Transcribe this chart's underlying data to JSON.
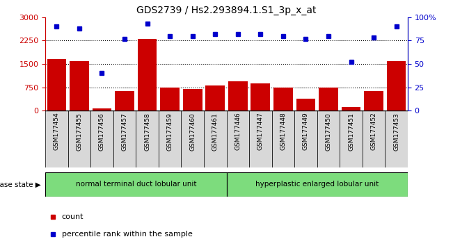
{
  "title": "GDS2739 / Hs2.293894.1.S1_3p_x_at",
  "samples": [
    "GSM177454",
    "GSM177455",
    "GSM177456",
    "GSM177457",
    "GSM177458",
    "GSM177459",
    "GSM177460",
    "GSM177461",
    "GSM177446",
    "GSM177447",
    "GSM177448",
    "GSM177449",
    "GSM177450",
    "GSM177451",
    "GSM177452",
    "GSM177453"
  ],
  "counts": [
    1650,
    1580,
    75,
    620,
    2300,
    750,
    700,
    800,
    950,
    870,
    750,
    380,
    750,
    120,
    640,
    1580
  ],
  "percentiles": [
    90,
    88,
    40,
    77,
    93,
    80,
    80,
    82,
    82,
    82,
    80,
    77,
    80,
    52,
    78,
    90
  ],
  "group1_label": "normal terminal duct lobular unit",
  "group2_label": "hyperplastic enlarged lobular unit",
  "group1_count": 8,
  "group2_count": 8,
  "bar_color": "#cc0000",
  "dot_color": "#0000cc",
  "left_ylim": [
    0,
    3000
  ],
  "right_ylim": [
    0,
    100
  ],
  "left_yticks": [
    0,
    750,
    1500,
    2250,
    3000
  ],
  "right_yticks": [
    0,
    25,
    50,
    75,
    100
  ],
  "left_yticklabels": [
    "0",
    "750",
    "1500",
    "2250",
    "3000"
  ],
  "right_yticklabels": [
    "0",
    "25",
    "50",
    "75",
    "100%"
  ],
  "grid_lines": [
    750,
    1500,
    2250
  ],
  "group1_color": "#7ddc7d",
  "group2_color": "#7ddc7d",
  "disease_state_label": "disease state",
  "legend_count_label": "count",
  "legend_pct_label": "percentile rank within the sample",
  "bg_color": "#d8d8d8",
  "right_yticklabels_full": [
    "0",
    "25",
    "50",
    "75",
    "100%"
  ]
}
